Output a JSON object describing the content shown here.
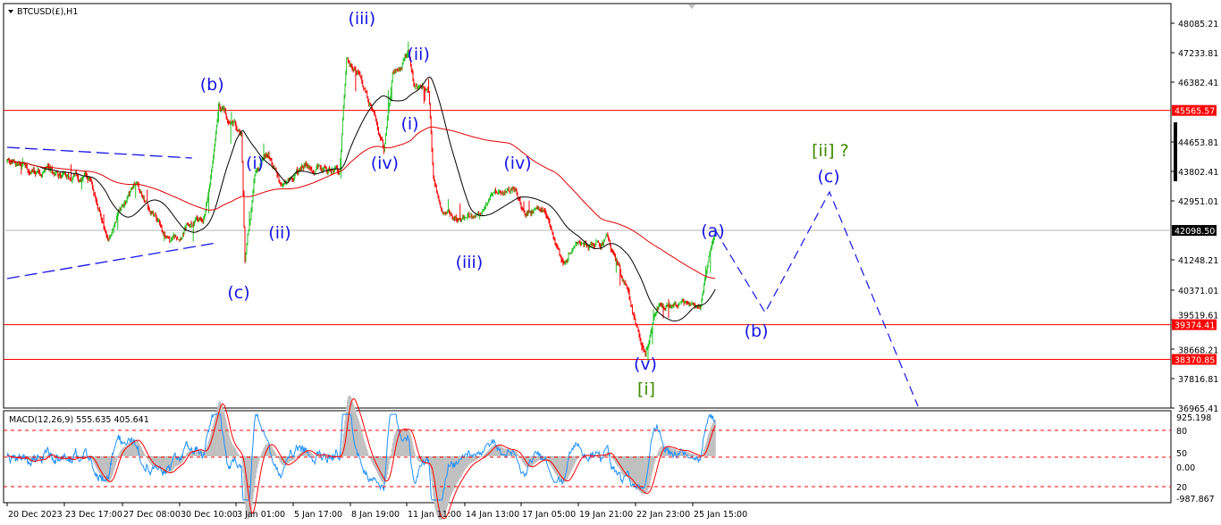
{
  "window": {
    "symbol_title": "BTCUSD(£),H1"
  },
  "colors": {
    "up": "#22c322",
    "down": "#ff0000",
    "ma_fast": "#000000",
    "ma_slow": "#e00000",
    "wave_blue": "#1414e6",
    "wave_green": "#3f8a00",
    "level_line": "#ff0000",
    "current_line": "#b4b4b4",
    "macd_hist": "#c0c0c0",
    "macd_signal": "#ff0000",
    "macd_fast": "#1e90ff"
  },
  "chart_data": {
    "type": "candlestick",
    "title": "BTCUSD(£),H1",
    "ylim": [
      36965.41,
      48085.21
    ],
    "price_axis_labels": [
      "48085.21",
      "47233.81",
      "46382.41",
      "44653.81",
      "43802.41",
      "42951.01",
      "41248.21",
      "40371.01",
      "39519.61",
      "38668.21",
      "37816.81",
      "36965.41"
    ],
    "time_axis": [
      {
        "label": "20 Dec 2023",
        "time": "2023-12-20 00:00"
      },
      {
        "label": "23 Dec 17:00",
        "time": "2023-12-23 17:00"
      },
      {
        "label": "27 Dec 08:00",
        "time": "2023-12-27 08:00"
      },
      {
        "label": "30 Dec 10:00",
        "time": "2023-12-30 10:00"
      },
      {
        "label": "3 Jan 01:00",
        "time": "2024-01-03 01:00"
      },
      {
        "label": "5 Jan 17:00",
        "time": "2024-01-05 17:00"
      },
      {
        "label": "8 Jan 19:00",
        "time": "2024-01-08 19:00"
      },
      {
        "label": "11 Jan 11:00",
        "time": "2024-01-11 11:00"
      },
      {
        "label": "14 Jan 13:00",
        "time": "2024-01-14 13:00"
      },
      {
        "label": "17 Jan 05:00",
        "time": "2024-01-17 05:00"
      },
      {
        "label": "19 Jan 21:00",
        "time": "2024-01-19 21:00"
      },
      {
        "label": "22 Jan 23:00",
        "time": "2024-01-22 23:00"
      },
      {
        "label": "25 Jan 15:00",
        "time": "2024-01-25 15:00"
      }
    ],
    "price_path": [
      [
        "2023-12-20 00:00",
        44112
      ],
      [
        "2023-12-21 20:00",
        43854
      ],
      [
        "2023-12-25 07:00",
        43596
      ],
      [
        "2023-12-26 10:00",
        41919
      ],
      [
        "2023-12-27 23:00",
        43467
      ],
      [
        "2023-12-29 21:00",
        41790
      ],
      [
        "2024-01-01 01:00",
        42564
      ],
      [
        "2024-01-01 10:00",
        43725
      ],
      [
        "2024-01-01 22:00",
        45789
      ],
      [
        "2024-01-03 07:00",
        44886
      ],
      [
        "2024-01-03 11:00",
        41274
      ],
      [
        "2024-01-03 22:00",
        43596
      ],
      [
        "2024-01-04 13:00",
        44370
      ],
      [
        "2024-01-05 04:00",
        43338
      ],
      [
        "2024-01-06 07:00",
        43983
      ],
      [
        "2024-01-08 05:00",
        43854
      ],
      [
        "2024-01-08 14:00",
        47079
      ],
      [
        "2024-01-09 03:00",
        46692
      ],
      [
        "2024-01-09 18:00",
        45660
      ],
      [
        "2024-01-10 09:00",
        44370
      ],
      [
        "2024-01-10 19:00",
        46563
      ],
      [
        "2024-01-11 13:00",
        47200
      ],
      [
        "2024-01-11 20:00",
        46176
      ],
      [
        "2024-01-12 15:00",
        46176
      ],
      [
        "2024-01-12 21:00",
        43596
      ],
      [
        "2024-01-13 09:00",
        42564
      ],
      [
        "2024-01-14 23:00",
        42435
      ],
      [
        "2024-01-16 05:00",
        43209
      ],
      [
        "2024-01-16 20:00",
        43338
      ],
      [
        "2024-01-17 12:00",
        42564
      ],
      [
        "2024-01-18 08:00",
        42693
      ],
      [
        "2024-01-18 18:00",
        41790
      ],
      [
        "2024-01-19 04:00",
        41145
      ],
      [
        "2024-01-19 14:00",
        41661
      ],
      [
        "2024-01-20 12:00",
        41661
      ],
      [
        "2024-01-21 11:00",
        41790
      ],
      [
        "2024-01-22 10:00",
        40500
      ],
      [
        "2024-01-22 22:00",
        39468
      ],
      [
        "2024-01-23 10:00",
        38565
      ],
      [
        "2024-01-23 23:00",
        39855
      ],
      [
        "2024-01-25 00:00",
        39984
      ],
      [
        "2024-01-26 01:00",
        39855
      ],
      [
        "2024-01-26 11:00",
        41274
      ],
      [
        "2024-01-26 19:00",
        42100
      ]
    ],
    "current_price": "42098.50",
    "horizontal_levels": [
      "45565.57",
      "39374.41",
      "38370.85"
    ],
    "trendlines": [
      {
        "from": [
          "2023-12-20 00:00",
          44499
        ],
        "to": [
          "2023-12-31 05:00",
          44189
        ]
      },
      {
        "from": [
          "2023-12-20 00:00",
          40706
        ],
        "to": [
          "2024-01-01 19:00",
          41738
        ]
      }
    ],
    "projection": [
      [
        "2024-01-26 19:00",
        42100
      ],
      [
        "2024-01-29 09:00",
        39726
      ],
      [
        "2024-02-01 17:00",
        43209
      ],
      [
        "2024-02-06 07:00",
        37017
      ]
    ],
    "wave_labels": [
      {
        "text": "(b)",
        "time": "2024-01-01 12:00",
        "price": 46331,
        "color": "blue"
      },
      {
        "text": "(c)",
        "time": "2024-01-03 04:00",
        "price": 40320,
        "color": "blue"
      },
      {
        "text": "(i)",
        "time": "2024-01-03 22:00",
        "price": 44060,
        "color": "blue"
      },
      {
        "text": "(ii)",
        "time": "2024-01-05 02:00",
        "price": 42048,
        "color": "blue"
      },
      {
        "text": "(iii)",
        "time": "2024-01-09 08:00",
        "price": 48240,
        "color": "blue"
      },
      {
        "text": "(iv)",
        "time": "2024-01-10 10:00",
        "price": 44060,
        "color": "blue"
      },
      {
        "text": "(ii)",
        "time": "2024-01-12 02:00",
        "price": 47208,
        "color": "blue"
      },
      {
        "text": "(i)",
        "time": "2024-01-11 15:00",
        "price": 45196,
        "color": "blue"
      },
      {
        "text": "(iii)",
        "time": "2024-01-14 18:00",
        "price": 41197,
        "color": "blue"
      },
      {
        "text": "(iv)",
        "time": "2024-01-17 01:00",
        "price": 44060,
        "color": "blue"
      },
      {
        "text": "(v)",
        "time": "2024-01-23 10:00",
        "price": 38255,
        "color": "blue"
      },
      {
        "text": "[i]",
        "time": "2024-01-23 11:00",
        "price": 37533,
        "color": "green"
      },
      {
        "text": "(a)",
        "time": "2024-01-26 16:00",
        "price": 42100,
        "color": "blue"
      },
      {
        "text": "(b)",
        "time": "2024-01-28 22:00",
        "price": 39210,
        "color": "blue"
      },
      {
        "text": "(c)",
        "time": "2024-02-01 16:00",
        "price": 43673,
        "color": "blue"
      },
      {
        "text": "[ii] ?",
        "time": "2024-02-01 18:00",
        "price": 44421,
        "color": "green"
      }
    ],
    "macd": {
      "header": "MACD(12,26,9) 555.635 405.641",
      "axis_labels": [
        "925.198",
        "80",
        "50",
        "0.00",
        "20",
        "-987.867"
      ],
      "ylim": [
        -987.867,
        925.198
      ],
      "levels": [
        80,
        50,
        20
      ]
    }
  }
}
